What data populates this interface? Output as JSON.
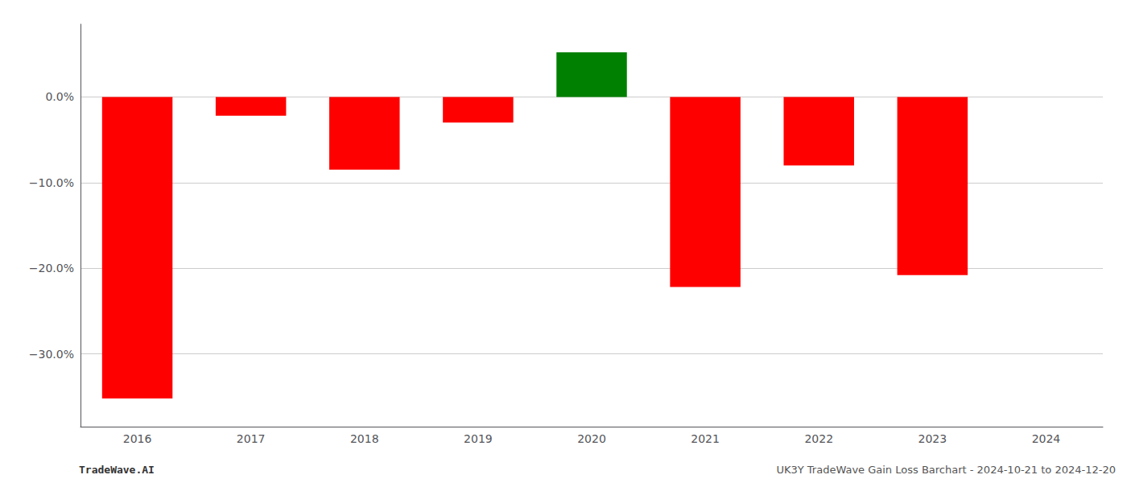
{
  "chart_data": {
    "type": "bar",
    "categories": [
      "2016",
      "2017",
      "2018",
      "2019",
      "2020",
      "2021",
      "2022",
      "2023",
      "2024"
    ],
    "values": [
      -0.352,
      -0.022,
      -0.085,
      -0.03,
      0.052,
      -0.222,
      -0.08,
      -0.208,
      null
    ],
    "colors": [
      "#ff0000",
      "#ff0000",
      "#ff0000",
      "#ff0000",
      "#008000",
      "#ff0000",
      "#ff0000",
      "#ff0000",
      null
    ],
    "ylim": [
      -0.385,
      0.085
    ],
    "yticks": [
      {
        "value": 0.0,
        "label": "0.0%"
      },
      {
        "value": -0.1,
        "label": "−10.0%"
      },
      {
        "value": -0.2,
        "label": "−20.0%"
      },
      {
        "value": -0.3,
        "label": "−30.0%"
      }
    ],
    "grid": true,
    "annotations": [
      "TradeWave.AI",
      "UK3Y TradeWave Gain Loss Barchart - 2024-10-21 to 2024-12-20"
    ]
  }
}
